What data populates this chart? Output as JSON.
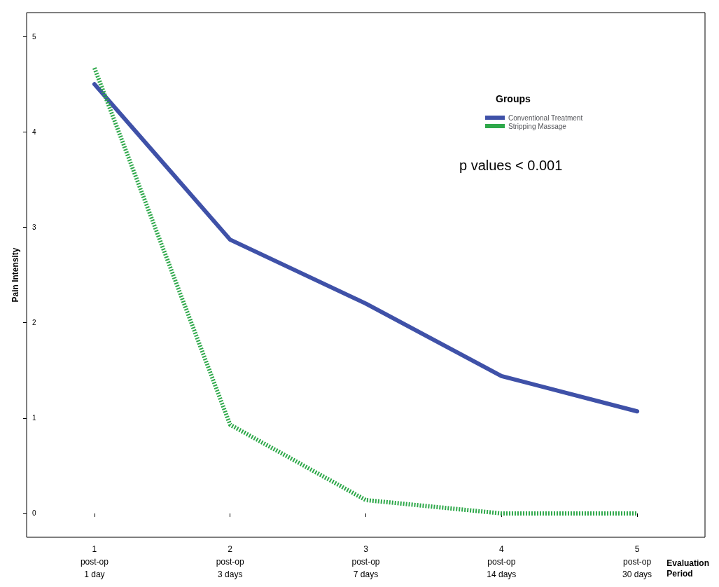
{
  "chart_data": {
    "type": "line",
    "xlabel": "Evaluation\nPeriod",
    "ylabel": "Pain Intensity",
    "legend_title": "Groups",
    "categories": [
      "1\npost-op\n1 day",
      "2\npost-op\n3 days",
      "3\npost-op\n7 days",
      "4\npost-op\n14 days",
      "5\npost-op\n30 days"
    ],
    "series": [
      {
        "name": "Conventional Treatment",
        "color": "#3f51a8",
        "line_style": "solid",
        "values": [
          4.5,
          2.87,
          2.2,
          1.44,
          1.07
        ]
      },
      {
        "name": "Stripping Massage",
        "color": "#2ea84a",
        "line_style": "dotted",
        "values": [
          4.67,
          0.93,
          0.14,
          0,
          0
        ]
      }
    ],
    "ylim": [
      -0.25,
      5.25
    ],
    "yticks": [
      0,
      1,
      2,
      3,
      4,
      5
    ],
    "grid": false,
    "legend": "top right",
    "marker": "none",
    "annotations": [
      "p values < 0.001"
    ]
  }
}
